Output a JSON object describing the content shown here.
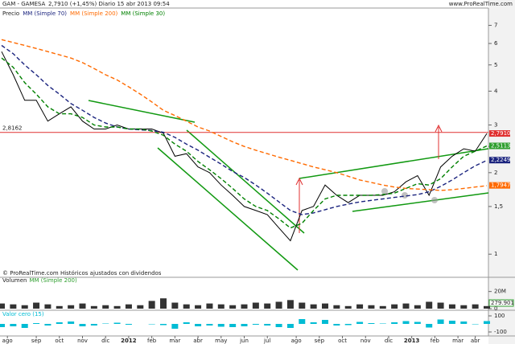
{
  "chart_data": [
    {
      "type": "line",
      "title": "GAM - GAMESA",
      "subtitle": "2,7910 (+1,45%)   Diario  15 abr 2013 09:54",
      "source": "www.ProRealTime.com",
      "note": "© ProRealTime.com Históricos ajustados con dividendos",
      "log_scale": true,
      "xlim": [
        0,
        42
      ],
      "ylim": [
        0.85,
        8
      ],
      "yticks": [
        1,
        {
          "value": 1.5,
          "label": "1,5"
        },
        2,
        {
          "value": 2.5,
          "label": "2,5"
        },
        3,
        4,
        5,
        6,
        7
      ],
      "xticks": [
        {
          "value": 0.5,
          "label": "ago"
        },
        {
          "value": 3,
          "label": "sep"
        },
        {
          "value": 5,
          "label": "oct"
        },
        {
          "value": 7,
          "label": "nov"
        },
        {
          "value": 9,
          "label": "dic"
        },
        {
          "value": 11,
          "label": "2012"
        },
        {
          "value": 13,
          "label": "feb"
        },
        {
          "value": 15,
          "label": "mar"
        },
        {
          "value": 17,
          "label": "abr"
        },
        {
          "value": 19,
          "label": "may"
        },
        {
          "value": 21,
          "label": "jun"
        },
        {
          "value": 23,
          "label": "jul"
        },
        {
          "value": 25.5,
          "label": "ago"
        },
        {
          "value": 27.5,
          "label": "sep"
        },
        {
          "value": 29.5,
          "label": "oct"
        },
        {
          "value": 31.5,
          "label": "nov"
        },
        {
          "value": 33.5,
          "label": "dic"
        },
        {
          "value": 35.5,
          "label": "2013"
        },
        {
          "value": 37.5,
          "label": "feb"
        },
        {
          "value": 39.5,
          "label": "mar"
        },
        {
          "value": 41,
          "label": "abr"
        }
      ],
      "hline": {
        "value": 2.8162,
        "label": "2,8162",
        "color": "#e03030"
      },
      "price_labels": [
        {
          "value": 2.791,
          "label": "2,7910",
          "color": "#e03030"
        },
        {
          "value": 2.5113,
          "label": "2,5113",
          "color": "#2e9e2e"
        },
        {
          "value": 2.2249,
          "label": "2,2249",
          "color": "#1a237e"
        },
        {
          "value": 1.7947,
          "label": "1,7947",
          "color": "#ff6a00"
        }
      ],
      "series": [
        {
          "name": "Precio",
          "color": "#000000",
          "values": [
            5.6,
            4.6,
            3.7,
            3.7,
            3.1,
            3.3,
            3.5,
            3.1,
            2.9,
            2.9,
            3.0,
            2.9,
            2.9,
            2.9,
            2.8,
            2.3,
            2.35,
            2.1,
            2.0,
            1.8,
            1.65,
            1.5,
            1.45,
            1.4,
            1.25,
            1.12,
            1.45,
            1.5,
            1.8,
            1.65,
            1.55,
            1.65,
            1.65,
            1.65,
            1.7,
            1.85,
            1.95,
            1.65,
            2.1,
            2.3,
            2.45,
            2.4,
            2.79
          ]
        },
        {
          "name": "MM (Simple 70)",
          "color": "#1a237e",
          "values": [
            5.9,
            5.5,
            5.0,
            4.6,
            4.2,
            3.9,
            3.6,
            3.4,
            3.2,
            3.05,
            2.95,
            2.9,
            2.88,
            2.86,
            2.82,
            2.7,
            2.55,
            2.42,
            2.28,
            2.15,
            2.02,
            1.92,
            1.8,
            1.68,
            1.56,
            1.45,
            1.4,
            1.42,
            1.46,
            1.5,
            1.53,
            1.56,
            1.58,
            1.6,
            1.62,
            1.64,
            1.66,
            1.7,
            1.78,
            1.88,
            2.0,
            2.12,
            2.22
          ]
        },
        {
          "name": "MM (Simple 200)",
          "color": "#ff6a00",
          "values": [
            6.2,
            6.05,
            5.9,
            5.75,
            5.6,
            5.45,
            5.3,
            5.1,
            4.85,
            4.6,
            4.4,
            4.15,
            3.9,
            3.65,
            3.4,
            3.25,
            3.1,
            2.95,
            2.85,
            2.72,
            2.6,
            2.5,
            2.42,
            2.35,
            2.28,
            2.22,
            2.16,
            2.1,
            2.05,
            2.0,
            1.94,
            1.88,
            1.84,
            1.8,
            1.77,
            1.75,
            1.74,
            1.73,
            1.72,
            1.73,
            1.75,
            1.77,
            1.79
          ]
        },
        {
          "name": "MM (Simple 30)",
          "color": "#008000",
          "values": [
            5.3,
            4.9,
            4.3,
            3.9,
            3.5,
            3.3,
            3.3,
            3.2,
            3.0,
            2.95,
            2.95,
            2.9,
            2.9,
            2.85,
            2.75,
            2.55,
            2.4,
            2.2,
            2.05,
            1.9,
            1.75,
            1.6,
            1.5,
            1.45,
            1.35,
            1.25,
            1.3,
            1.45,
            1.6,
            1.65,
            1.65,
            1.65,
            1.65,
            1.66,
            1.68,
            1.75,
            1.82,
            1.8,
            1.9,
            2.1,
            2.3,
            2.4,
            2.51
          ]
        }
      ]
    },
    {
      "type": "bar",
      "title": "Volumen",
      "ma_name": "MM (Simple 200)",
      "ma_label": "279.901",
      "color": "#333333",
      "ylim": [
        0,
        30000000
      ],
      "yticks": [
        {
          "value": 20000000,
          "label": "20M"
        },
        0
      ],
      "values": [
        6000000,
        5000000,
        4000000,
        7000000,
        5000000,
        3000000,
        4000000,
        6000000,
        3000000,
        4000000,
        3000000,
        5000000,
        4000000,
        9000000,
        12000000,
        7000000,
        5000000,
        4000000,
        6000000,
        5000000,
        4000000,
        5000000,
        7000000,
        6000000,
        8000000,
        10000000,
        7000000,
        5000000,
        6000000,
        4000000,
        3000000,
        5000000,
        4000000,
        3000000,
        5000000,
        6000000,
        4000000,
        8000000,
        7000000,
        5000000,
        4000000,
        5000000,
        3000000
      ]
    },
    {
      "type": "line",
      "title": "Valor cero (15)",
      "color": "#00bcd4",
      "ylim": [
        -130,
        130
      ],
      "yticks": [
        100,
        -100
      ],
      "values": [
        -40,
        -30,
        -50,
        10,
        -20,
        20,
        30,
        -30,
        -20,
        5,
        15,
        -10,
        0,
        -5,
        -15,
        -60,
        20,
        -30,
        -20,
        -35,
        -40,
        -30,
        -10,
        -20,
        -40,
        -50,
        60,
        20,
        50,
        -20,
        -15,
        25,
        10,
        5,
        20,
        35,
        25,
        -45,
        55,
        40,
        30,
        -5,
        35
      ]
    }
  ]
}
